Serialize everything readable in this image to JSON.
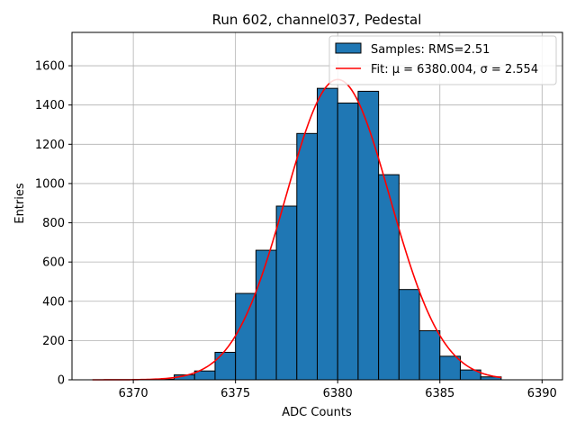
{
  "chart_data": {
    "type": "bar",
    "title": "Run 602, channel037, Pedestal",
    "xlabel": "ADC Counts",
    "ylabel": "Entries",
    "xlim": [
      6367,
      6391
    ],
    "ylim": [
      0,
      1770
    ],
    "xticks": [
      6370,
      6375,
      6380,
      6385,
      6390
    ],
    "yticks": [
      0,
      200,
      400,
      600,
      800,
      1000,
      1200,
      1400,
      1600
    ],
    "grid": true,
    "legend_position": "top-right",
    "bin_width": 1,
    "bins": [
      {
        "x0": 6368,
        "count": 0
      },
      {
        "x0": 6369,
        "count": 0
      },
      {
        "x0": 6370,
        "count": 0
      },
      {
        "x0": 6371,
        "count": 3
      },
      {
        "x0": 6372,
        "count": 25
      },
      {
        "x0": 6373,
        "count": 45
      },
      {
        "x0": 6374,
        "count": 140
      },
      {
        "x0": 6375,
        "count": 440
      },
      {
        "x0": 6376,
        "count": 660
      },
      {
        "x0": 6377,
        "count": 885
      },
      {
        "x0": 6378,
        "count": 1255
      },
      {
        "x0": 6379,
        "count": 1485
      },
      {
        "x0": 6380,
        "count": 1410
      },
      {
        "x0": 6381,
        "count": 1470
      },
      {
        "x0": 6382,
        "count": 1045
      },
      {
        "x0": 6383,
        "count": 460
      },
      {
        "x0": 6384,
        "count": 250
      },
      {
        "x0": 6385,
        "count": 120
      },
      {
        "x0": 6386,
        "count": 50
      },
      {
        "x0": 6387,
        "count": 15
      }
    ],
    "series": [
      {
        "name": "Samples: RMS=2.51",
        "kind": "histogram",
        "color": "#1f77b4",
        "edge_color": "#000000"
      },
      {
        "name": "Fit: μ = 6380.004, σ = 2.554",
        "kind": "gaussian-fit",
        "color": "#ff0000",
        "mu": 6380.004,
        "sigma": 2.554,
        "amplitude": 1530,
        "x_range": [
          6368,
          6388
        ]
      }
    ]
  }
}
